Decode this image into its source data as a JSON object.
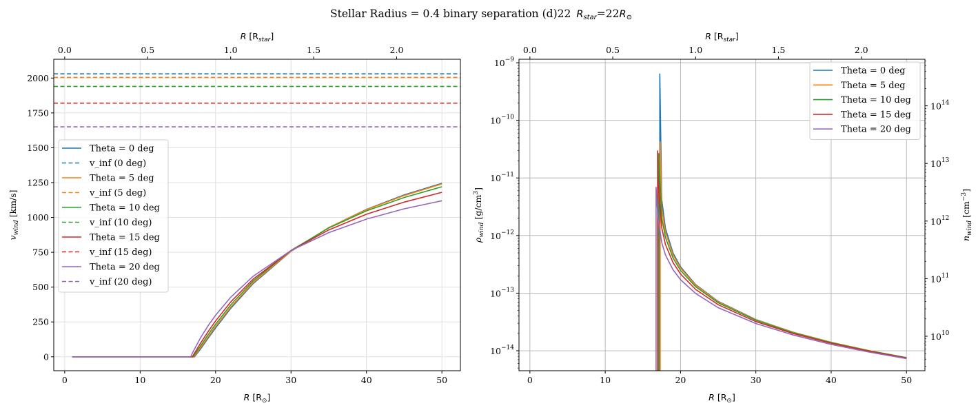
{
  "title": {
    "prefix": "Stellar Radius = 0.4 binary separation (d)22",
    "rstar_main": "R",
    "rstar_sub": "star",
    "rstar_eq": "=22",
    "rsun_main": "R",
    "rsun_sub": "⊙"
  },
  "colors": [
    "#1f77b4",
    "#ff7f0e",
    "#2ca02c",
    "#d62728",
    "#9467bd"
  ],
  "chart_data": [
    {
      "type": "line",
      "xlabel": {
        "main": "R",
        "unit": "[R",
        "sub": "⊙",
        "close": "]"
      },
      "ylabel": {
        "main": "v",
        "sub": "wind",
        "unit": "[km/s]"
      },
      "top_xlabel": {
        "main": "R",
        "unit": "[R",
        "sub": "star",
        "close": "]"
      },
      "xlim": [
        -1.45,
        52.45
      ],
      "ylim": [
        -100,
        2135
      ],
      "xticks": [
        0,
        10,
        20,
        30,
        40,
        50
      ],
      "yticks": [
        0,
        250,
        500,
        750,
        1000,
        1250,
        1500,
        1750,
        2000
      ],
      "top_xticks": [
        "0.0",
        "0.5",
        "1.0",
        "1.5",
        "2.0"
      ],
      "top_axis_scale_rsun_per_rstar": 22,
      "grid": true,
      "legend": "center-left",
      "series": [
        {
          "name": "Theta = 0 deg",
          "style": "solid",
          "x": [
            1,
            17.2,
            18,
            19,
            20,
            22,
            25,
            30,
            35,
            40,
            45,
            50
          ],
          "y": [
            0,
            0,
            55,
            132,
            207,
            347,
            526,
            757,
            927,
            1058,
            1162,
            1245
          ]
        },
        {
          "name": "v_inf (0 deg)",
          "style": "dashed",
          "hline": 2030
        },
        {
          "name": "Theta = 5 deg",
          "style": "solid",
          "x": [
            1,
            17.1,
            18,
            19,
            20,
            22,
            25,
            30,
            35,
            40,
            45,
            50
          ],
          "y": [
            0,
            0,
            64,
            142,
            218,
            357,
            533,
            759,
            927,
            1056,
            1157,
            1240
          ]
        },
        {
          "name": "v_inf (5 deg)",
          "style": "dashed",
          "hline": 2005
        },
        {
          "name": "Theta = 10 deg",
          "style": "solid",
          "x": [
            1,
            17.0,
            18,
            19,
            20,
            22,
            25,
            30,
            35,
            40,
            45,
            50
          ],
          "y": [
            0,
            0,
            77,
            158,
            234,
            372,
            545,
            764,
            924,
            1047,
            1143,
            1220
          ]
        },
        {
          "name": "v_inf (10 deg)",
          "style": "dashed",
          "hline": 1940
        },
        {
          "name": "Theta = 15 deg",
          "style": "solid",
          "x": [
            1,
            16.9,
            17,
            18,
            19,
            20,
            22,
            25,
            30,
            35,
            40,
            45,
            50
          ],
          "y": [
            0,
            0,
            8,
            97,
            180,
            257,
            393,
            558,
            763,
            910,
            1023,
            1110,
            1180
          ]
        },
        {
          "name": "v_inf (15 deg)",
          "style": "dashed",
          "hline": 1820
        },
        {
          "name": "Theta = 20 deg",
          "style": "solid",
          "x": [
            1,
            16.7,
            17,
            18,
            19,
            20,
            22,
            25,
            30,
            35,
            40,
            45,
            50
          ],
          "y": [
            0,
            0,
            35,
            136,
            222,
            298,
            427,
            579,
            763,
            891,
            988,
            1062,
            1120
          ]
        },
        {
          "name": "v_inf (20 deg)",
          "style": "dashed",
          "hline": 1650
        }
      ]
    },
    {
      "type": "line",
      "yscale": "log",
      "xlabel": {
        "main": "R",
        "unit": "[R",
        "sub": "⊙",
        "close": "]"
      },
      "ylabel": {
        "main": "ρ",
        "sub": "wind",
        "unit": "[g/cm",
        "sup": "3",
        "close": "]"
      },
      "right_ylabel": {
        "main": "n",
        "sub": "wind",
        "unit": "[cm",
        "sup": "−3",
        "close": "]"
      },
      "top_xlabel": {
        "main": "R",
        "unit": "[R",
        "sub": "star",
        "close": "]"
      },
      "xlim": [
        -1.45,
        52.45
      ],
      "ylim": [
        4.5e-15,
        1.15e-09
      ],
      "xticks": [
        0,
        10,
        20,
        30,
        40,
        50
      ],
      "yticks": [
        -14,
        -13,
        -12,
        -11,
        -10,
        -9
      ],
      "right_yticks": [
        10,
        11,
        12,
        13,
        14
      ],
      "right_axis_n_per_rho": 5.6e+23,
      "top_xticks": [
        "0.0",
        "0.5",
        "1.0",
        "1.5",
        "2.0"
      ],
      "grid": true,
      "legend": "upper right",
      "series": [
        {
          "name": "Theta = 0 deg",
          "x": [
            17.25,
            17.5,
            18,
            19,
            20,
            22,
            25,
            30,
            35,
            40,
            45,
            50
          ],
          "y": [
            6.5e-10,
            4.25e-12,
            1.33e-12,
            4.98e-13,
            2.86e-13,
            1.41e-13,
            7.2e-14,
            3.48e-14,
            2.09e-14,
            1.4e-14,
            1e-14,
            7.6e-15
          ]
        },
        {
          "name": "Theta = 5 deg",
          "x": [
            17.3,
            17.5,
            18,
            19,
            20,
            22,
            25,
            30,
            35,
            40,
            45,
            50
          ],
          "y": [
            4.3e-11,
            2.97e-12,
            1.14e-12,
            4.6e-13,
            2.71e-13,
            1.37e-13,
            7.08e-14,
            3.45e-14,
            2.08e-14,
            1.4e-14,
            1.01e-14,
            7.6e-15
          ]
        },
        {
          "name": "Theta = 10 deg",
          "x": [
            17.1,
            17.5,
            18,
            19,
            20,
            22,
            25,
            30,
            35,
            40,
            45,
            50
          ],
          "y": [
            2.7e-11,
            2.05e-12,
            9.3e-13,
            4.07e-13,
            2.48e-13,
            1.29e-13,
            6.8e-14,
            3.37e-14,
            2.05e-14,
            1.38e-14,
            1e-14,
            7.6e-15
          ]
        },
        {
          "name": "Theta = 15 deg",
          "x": [
            16.95,
            17,
            17.5,
            18,
            19,
            20,
            22,
            25,
            30,
            35,
            40,
            45,
            50
          ],
          "y": [
            3e-11,
            9.6e-12,
            1.37e-12,
            7e-13,
            3.4e-13,
            2.15e-13,
            1.16e-13,
            6.3e-14,
            3.2e-14,
            1.98e-14,
            1.35e-14,
            9.8e-15,
            7.5e-15
          ]
        },
        {
          "name": "Theta = 20 deg",
          "x": [
            16.75,
            17,
            17.5,
            18,
            19,
            20,
            22,
            25,
            30,
            35,
            40,
            45,
            50
          ],
          "y": [
            7e-12,
            2e-12,
            7.6e-13,
            4.6e-13,
            2.55e-13,
            1.71e-13,
            9.9e-14,
            5.6e-14,
            2.97e-14,
            1.87e-14,
            1.29e-14,
            9.5e-15,
            7.3e-15
          ]
        }
      ]
    }
  ]
}
